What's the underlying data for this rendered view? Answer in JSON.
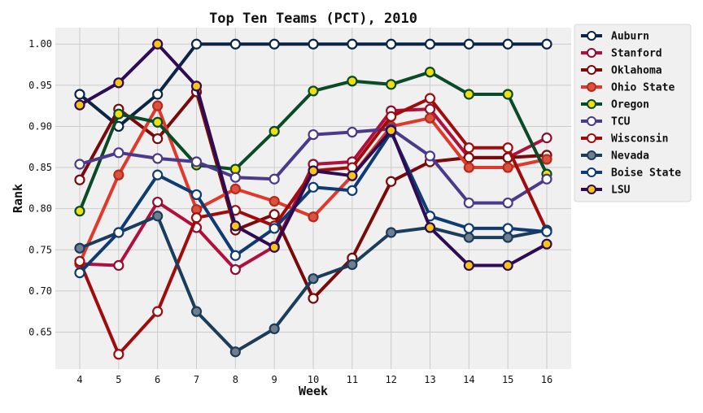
{
  "chart_data": {
    "type": "line",
    "title": "Top Ten Teams (PCT), 2010",
    "xlabel": "Week",
    "ylabel": "Rank",
    "x": [
      4,
      5,
      6,
      7,
      8,
      9,
      10,
      11,
      12,
      13,
      14,
      15,
      16
    ],
    "ylim": [
      0.605,
      1.02
    ],
    "yticks": [
      "0.65",
      "0.70",
      "0.75",
      "0.80",
      "0.85",
      "0.90",
      "0.95",
      "1.00"
    ],
    "grid": true,
    "legend": "outside-top-right",
    "series": [
      {
        "name": "Auburn",
        "line_color": "#0b2545",
        "marker_fill": "#ffffff",
        "marker_edge": "#0b2545",
        "values": [
          0.939,
          0.9,
          0.939,
          1.0,
          1.0,
          1.0,
          1.0,
          1.0,
          1.0,
          1.0,
          1.0,
          1.0,
          1.0
        ]
      },
      {
        "name": "Stanford",
        "line_color": "#b1103f",
        "marker_fill": "#ffffff",
        "marker_edge": "#8f0c33",
        "values": [
          0.733,
          0.731,
          0.808,
          0.777,
          0.726,
          0.754,
          0.854,
          0.857,
          0.919,
          0.921,
          0.862,
          0.862,
          0.886
        ]
      },
      {
        "name": "Oklahoma",
        "line_color": "#7a0a0a",
        "marker_fill": "#ffffff",
        "marker_edge": "#7a0a0a",
        "values": [
          0.835,
          0.921,
          0.885,
          0.942,
          0.774,
          0.793,
          0.691,
          0.74,
          0.833,
          0.857,
          0.862,
          0.862,
          0.865
        ]
      },
      {
        "name": "Ohio State",
        "line_color": "#e0392b",
        "marker_fill": "#d9533d",
        "marker_edge": "#b52a1f",
        "values": [
          0.734,
          0.841,
          0.925,
          0.799,
          0.824,
          0.809,
          0.79,
          0.84,
          0.9,
          0.91,
          0.85,
          0.85,
          0.86
        ]
      },
      {
        "name": "Oregon",
        "line_color": "#0a4a26",
        "marker_fill": "#f0e010",
        "marker_edge": "#0a4a26",
        "values": [
          0.797,
          0.915,
          0.905,
          0.853,
          0.848,
          0.894,
          0.943,
          0.955,
          0.951,
          0.966,
          0.939,
          0.939,
          0.842
        ]
      },
      {
        "name": "TCU",
        "line_color": "#4b3a8c",
        "marker_fill": "#ffffff",
        "marker_edge": "#4b3a8c",
        "values": [
          0.854,
          0.868,
          0.861,
          0.857,
          0.838,
          0.836,
          0.89,
          0.893,
          0.897,
          0.864,
          0.807,
          0.807,
          0.836
        ]
      },
      {
        "name": "Wisconsin",
        "line_color": "#a00c0c",
        "marker_fill": "#ffffff",
        "marker_edge": "#a00c0c",
        "values": [
          0.736,
          0.623,
          0.675,
          0.789,
          0.798,
          0.779,
          0.846,
          0.85,
          0.912,
          0.934,
          0.874,
          0.874,
          0.773
        ]
      },
      {
        "name": "Nevada",
        "line_color": "#1c3d5a",
        "marker_fill": "#6f7f8f",
        "marker_edge": "#1c3d5a",
        "values": [
          0.752,
          0.771,
          0.791,
          0.675,
          0.626,
          0.654,
          0.715,
          0.732,
          0.771,
          0.777,
          0.765,
          0.765,
          0.774
        ]
      },
      {
        "name": "Boise State",
        "line_color": "#0e3b73",
        "marker_fill": "#ffffff",
        "marker_edge": "#0e3b73",
        "values": [
          0.722,
          0.771,
          0.841,
          0.817,
          0.743,
          0.776,
          0.826,
          0.822,
          0.893,
          0.791,
          0.776,
          0.776,
          0.772
        ]
      },
      {
        "name": "LSU",
        "line_color": "#2e0b52",
        "marker_fill": "#f5c518",
        "marker_edge": "#2e0b52",
        "values": [
          0.926,
          0.953,
          1.0,
          0.949,
          0.779,
          0.753,
          0.846,
          0.84,
          0.895,
          0.777,
          0.731,
          0.731,
          0.757
        ]
      }
    ]
  }
}
